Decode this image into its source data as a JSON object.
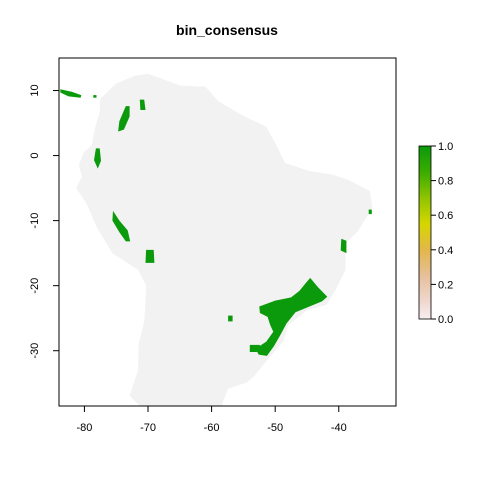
{
  "title": "bin_consensus",
  "colors": {
    "land": "#f2f2f2",
    "presence": "#0b9a0b",
    "frame": "#000000",
    "background": "#ffffff"
  },
  "axes": {
    "x_ticks": [
      -80,
      -70,
      -60,
      -50,
      -40
    ],
    "x_tick_labels": [
      "-80",
      "-70",
      "-60",
      "-50",
      "-40"
    ],
    "y_ticks": [
      10,
      0,
      -10,
      -20,
      -30
    ],
    "y_tick_labels": [
      "10",
      "0",
      "-10",
      "-20",
      "-30"
    ],
    "xlim": [
      -84,
      -31
    ],
    "ylim": [
      -38.5,
      15
    ]
  },
  "legend": {
    "ticks": [
      1.0,
      0.8,
      0.6,
      0.4,
      0.2,
      0.0
    ],
    "tick_labels": [
      "1.0",
      "0.8",
      "0.6",
      "0.4",
      "0.2",
      "0.0"
    ],
    "gradient": [
      {
        "value": 1.0,
        "color": "#0b9a0b"
      },
      {
        "value": 0.85,
        "color": "#3aac00"
      },
      {
        "value": 0.7,
        "color": "#8fc400"
      },
      {
        "value": 0.55,
        "color": "#d6d600"
      },
      {
        "value": 0.4,
        "color": "#e2b74a"
      },
      {
        "value": 0.25,
        "color": "#e6c09a"
      },
      {
        "value": 0.1,
        "color": "#f0d7cf"
      },
      {
        "value": 0.0,
        "color": "#f7efef"
      }
    ]
  },
  "chart_data": {
    "type": "heatmap",
    "title": "bin_consensus",
    "xlabel": "",
    "ylabel": "",
    "xlim": [
      -84,
      -31
    ],
    "ylim": [
      -38.5,
      15
    ],
    "value_range": [
      0,
      1
    ],
    "land_outline": [
      [
        -77.5,
        8.6
      ],
      [
        -75,
        11
      ],
      [
        -72,
        12.2
      ],
      [
        -70,
        12.5
      ],
      [
        -65,
        10.7
      ],
      [
        -61,
        10.5
      ],
      [
        -59,
        8.3
      ],
      [
        -55,
        6
      ],
      [
        -51.5,
        4.4
      ],
      [
        -50,
        1.8
      ],
      [
        -48.5,
        -1.2
      ],
      [
        -44.5,
        -2.5
      ],
      [
        -41,
        -3
      ],
      [
        -38.5,
        -3.8
      ],
      [
        -35.2,
        -5.5
      ],
      [
        -34.8,
        -8
      ],
      [
        -37,
        -11.5
      ],
      [
        -39,
        -13.5
      ],
      [
        -39,
        -17.5
      ],
      [
        -40.5,
        -20.5
      ],
      [
        -42,
        -22.9
      ],
      [
        -45,
        -23.7
      ],
      [
        -48,
        -26
      ],
      [
        -48.8,
        -28.5
      ],
      [
        -51,
        -31
      ],
      [
        -53.3,
        -33.8
      ],
      [
        -54.5,
        -34.8
      ],
      [
        -57.5,
        -35.8
      ],
      [
        -58.5,
        -38.5
      ],
      [
        -65,
        -38.5
      ],
      [
        -68,
        -38.5
      ],
      [
        -71.2,
        -38.5
      ],
      [
        -72.8,
        -36.9
      ],
      [
        -71.5,
        -33
      ],
      [
        -71.4,
        -29
      ],
      [
        -70.5,
        -25.5
      ],
      [
        -70.2,
        -20
      ],
      [
        -71.5,
        -17.5
      ],
      [
        -75.5,
        -15
      ],
      [
        -78,
        -11
      ],
      [
        -79.5,
        -7.5
      ],
      [
        -81.2,
        -5
      ],
      [
        -80.3,
        -3.2
      ],
      [
        -80.8,
        -1.5
      ],
      [
        -80,
        0.5
      ],
      [
        -78.8,
        1.5
      ],
      [
        -78.3,
        4
      ],
      [
        -77.5,
        6.8
      ]
    ],
    "presence_patches": [
      [
        [
          -52.5,
          -23.2
        ],
        [
          -50,
          -22.3
        ],
        [
          -47.5,
          -21.8
        ],
        [
          -46.2,
          -20.8
        ],
        [
          -45.2,
          -19.6
        ],
        [
          -44.5,
          -18.8
        ],
        [
          -43.3,
          -20.2
        ],
        [
          -41.8,
          -21.7
        ],
        [
          -42.6,
          -22.4
        ],
        [
          -44.6,
          -23.2
        ],
        [
          -46.8,
          -24.1
        ],
        [
          -48.2,
          -25.8
        ],
        [
          -49.2,
          -27.6
        ],
        [
          -50.2,
          -29.3
        ],
        [
          -51.3,
          -30.8
        ],
        [
          -52.6,
          -30.6
        ],
        [
          -53.1,
          -29.7
        ],
        [
          -51.4,
          -28.6
        ],
        [
          -50.3,
          -27.1
        ],
        [
          -50.8,
          -26
        ],
        [
          -51.2,
          -24.8
        ],
        [
          -52.4,
          -24.2
        ]
      ],
      [
        [
          -39.6,
          -12.8
        ],
        [
          -38.8,
          -13.1
        ],
        [
          -38.8,
          -15
        ],
        [
          -39.7,
          -14.6
        ]
      ],
      [
        [
          -35.3,
          -8.3
        ],
        [
          -34.8,
          -8.3
        ],
        [
          -34.8,
          -9
        ],
        [
          -35.3,
          -9
        ]
      ],
      [
        [
          -70.3,
          -14.5
        ],
        [
          -69.1,
          -14.5
        ],
        [
          -69,
          -16.5
        ],
        [
          -70.4,
          -16.5
        ]
      ],
      [
        [
          -57.4,
          -24.6
        ],
        [
          -56.7,
          -24.6
        ],
        [
          -56.7,
          -25.5
        ],
        [
          -57.4,
          -25.5
        ]
      ],
      [
        [
          -54,
          -29.1
        ],
        [
          -52.4,
          -29.1
        ],
        [
          -52.4,
          -30.2
        ],
        [
          -54,
          -30.2
        ]
      ],
      [
        [
          -75.5,
          -8.5
        ],
        [
          -74.5,
          -10
        ],
        [
          -73.2,
          -11.5
        ],
        [
          -72.8,
          -13.2
        ],
        [
          -73.5,
          -13.2
        ],
        [
          -74.5,
          -11.8
        ],
        [
          -75.6,
          -10
        ]
      ],
      [
        [
          -73.5,
          7.6
        ],
        [
          -72.9,
          7.6
        ],
        [
          -72.9,
          6
        ],
        [
          -73.8,
          4
        ],
        [
          -74.7,
          3.7
        ],
        [
          -74.5,
          5.3
        ]
      ],
      [
        [
          -71.3,
          8.6
        ],
        [
          -70.6,
          8.6
        ],
        [
          -70.4,
          7
        ],
        [
          -71.2,
          7
        ]
      ],
      [
        [
          -78.2,
          1.1
        ],
        [
          -77.6,
          1.1
        ],
        [
          -77.4,
          -0.8
        ],
        [
          -77.9,
          -2
        ],
        [
          -78.5,
          -0.7
        ]
      ],
      [
        [
          -83.8,
          10.2
        ],
        [
          -82,
          9.8
        ],
        [
          -80.5,
          9.3
        ],
        [
          -80.6,
          8.9
        ],
        [
          -82.5,
          9.1
        ],
        [
          -83.8,
          9.7
        ]
      ],
      [
        [
          -78.6,
          9.3
        ],
        [
          -78.1,
          9.3
        ],
        [
          -78.1,
          8.9
        ],
        [
          -78.6,
          8.9
        ]
      ]
    ]
  }
}
